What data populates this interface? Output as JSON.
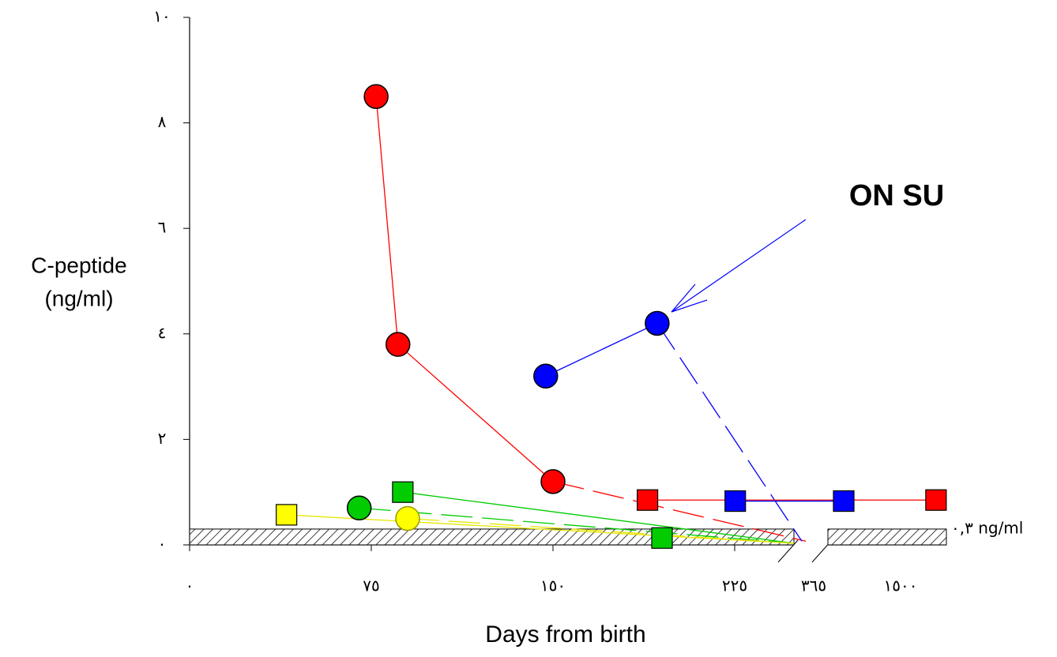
{
  "chart_data": {
    "type": "line",
    "y_label": [
      "C-peptide",
      "(ng/ml)"
    ],
    "x_label": "Days from birth",
    "ylim": [
      0,
      10
    ],
    "yticks": [
      {
        "value": 0,
        "label": "٠"
      },
      {
        "value": 2,
        "label": "٢"
      },
      {
        "value": 4,
        "label": "٤"
      },
      {
        "value": 6,
        "label": "٦"
      },
      {
        "value": 8,
        "label": "٨"
      },
      {
        "value": 10,
        "label": "١٠"
      }
    ],
    "xlim": [
      0,
      2100
    ],
    "xticks": [
      {
        "value": 0,
        "label": "٠"
      },
      {
        "value": 75,
        "label": "٧٥"
      },
      {
        "value": 150,
        "label": "١٥٠"
      },
      {
        "value": 225,
        "label": "٢٢٥"
      },
      {
        "value": 365,
        "label": "٣٦٥",
        "color": "#ff0000"
      },
      {
        "value": 1500,
        "label": "١٥٠٠"
      }
    ],
    "threshold": {
      "value": 0.3,
      "label": "٠,٣ ng/ml"
    },
    "annotation": {
      "text": "ON SU",
      "color": "#0000ff"
    },
    "series": [
      {
        "color": "#ff0000",
        "marker": "none",
        "dashed": true,
        "x": [
          150,
          351
        ],
        "values": [
          1.2,
          0.07
        ]
      },
      {
        "color": "#0000ff",
        "marker": "none",
        "dashed": true,
        "x": [
          193,
          344
        ],
        "values": [
          4.2,
          0.07
        ]
      },
      {
        "color": "#00cc00",
        "marker": "none",
        "dashed": true,
        "x": [
          70,
          330
        ],
        "values": [
          0.7,
          0.03
        ]
      },
      {
        "color": "#00cc00",
        "marker": "none",
        "dashed": false,
        "x": [
          88,
          330
        ],
        "values": [
          1.0,
          0.03
        ]
      },
      {
        "color": "#e6e600",
        "marker": "none",
        "dashed": false,
        "x": [
          40,
          330
        ],
        "values": [
          0.57,
          0.03
        ]
      },
      {
        "color": "#e6e600",
        "marker": "none",
        "dashed": true,
        "x": [
          90,
          330
        ],
        "values": [
          0.5,
          0.03
        ]
      },
      {
        "color": "#ff0000",
        "marker": "circle",
        "dashed": false,
        "x": [
          77,
          86,
          150
        ],
        "values": [
          8.5,
          3.8,
          1.2
        ]
      },
      {
        "color": "#ff0000",
        "marker": "square",
        "dashed": false,
        "x": [
          189,
          1964
        ],
        "values": [
          0.85,
          0.85
        ]
      },
      {
        "color": "#0000ff",
        "marker": "circle",
        "dashed": false,
        "x": [
          147,
          193
        ],
        "values": [
          3.2,
          4.2
        ]
      },
      {
        "color": "#0000ff",
        "marker": "square",
        "dashed": false,
        "x": [
          226,
          757
        ],
        "values": [
          0.83,
          0.83
        ]
      },
      {
        "color": "#00cc00",
        "marker": "circle",
        "dashed": false,
        "x": [
          70
        ],
        "values": [
          0.7
        ]
      },
      {
        "color": "#00cc00",
        "marker": "square",
        "dashed": false,
        "x": [
          88
        ],
        "values": [
          1.0
        ]
      },
      {
        "color": "#00cc00",
        "marker": "square",
        "dashed": false,
        "x": [
          195
        ],
        "values": [
          0.13
        ]
      },
      {
        "color": "#ffff00",
        "marker": "square",
        "dashed": false,
        "x": [
          40
        ],
        "values": [
          0.57
        ]
      },
      {
        "color": "#ffff00",
        "marker": "circle",
        "dashed": false,
        "x": [
          90
        ],
        "values": [
          0.5
        ]
      }
    ]
  }
}
